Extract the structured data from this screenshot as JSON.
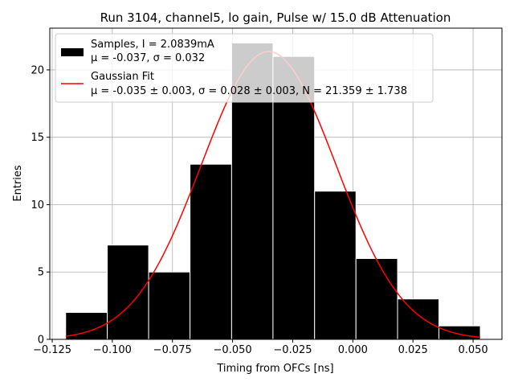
{
  "chart_data": {
    "type": "bar",
    "title": "Run 3104, channel5, lo gain, Pulse w/ 15.0 dB Attenuation",
    "xlabel": "Timing from OFCs [ns]",
    "ylabel": "Entries",
    "xlim": [
      -0.126,
      0.062
    ],
    "ylim": [
      0,
      23.1
    ],
    "grid": true,
    "legend_position": "top-left",
    "bin_edges": [
      -0.1194,
      -0.1021,
      -0.0849,
      -0.0677,
      -0.0504,
      -0.0332,
      -0.0159,
      0.0013,
      0.0186,
      0.0358,
      0.053
    ],
    "counts": [
      2,
      7,
      5,
      13,
      22,
      21,
      11,
      6,
      3,
      1
    ],
    "x_ticks": [
      -0.125,
      -0.1,
      -0.075,
      -0.05,
      -0.025,
      0.0,
      0.025,
      0.05
    ],
    "x_tick_labels": [
      "−0.125",
      "−0.100",
      "−0.075",
      "−0.050",
      "−0.025",
      "0.000",
      "0.025",
      "0.050"
    ],
    "y_ticks": [
      0,
      5,
      10,
      15,
      20
    ],
    "y_tick_labels": [
      "0",
      "5",
      "10",
      "15",
      "20"
    ],
    "fit": {
      "mu": -0.035,
      "sigma": 0.028,
      "N": 21.359,
      "x_range": [
        -0.1194,
        0.053
      ]
    },
    "series": [
      {
        "type": "histogram",
        "color": "#000000",
        "legend_lines": [
          "Samples, I = 2.0839mA",
          "μ = -0.037, σ = 0.032"
        ]
      },
      {
        "type": "line",
        "color": "#ff0000",
        "legend_lines": [
          "Gaussian Fit",
          "μ = -0.035 ± 0.003, σ = 0.028 ± 0.003, N = 21.359 ± 1.738"
        ]
      }
    ]
  }
}
